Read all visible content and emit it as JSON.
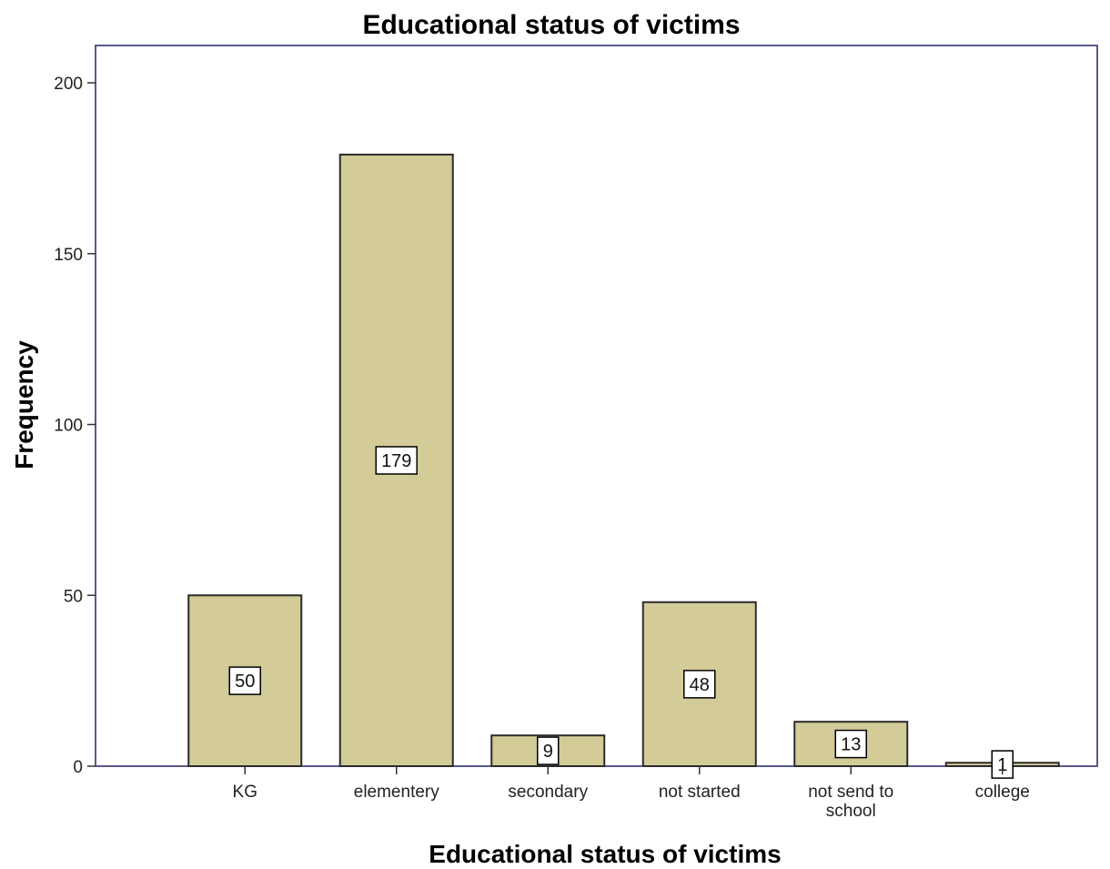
{
  "chart_data": {
    "type": "bar",
    "title": "Educational status of victims",
    "xlabel": "Educational status of victims",
    "ylabel": "Frequency",
    "categories": [
      "KG",
      "elementery",
      "secondary",
      "not started",
      "not send to school",
      "college"
    ],
    "category_label_lines": [
      [
        "KG"
      ],
      [
        "elementery"
      ],
      [
        "secondary"
      ],
      [
        "not started"
      ],
      [
        "not send to",
        "school"
      ],
      [
        "college"
      ]
    ],
    "values": [
      50,
      179,
      9,
      48,
      13,
      1
    ],
    "data_labels": [
      "50",
      "179",
      "9",
      "48",
      "13",
      "1"
    ],
    "ylim": [
      0,
      210
    ],
    "yticks": [
      0,
      50,
      100,
      150,
      200
    ],
    "ytick_labels": [
      "0",
      "50",
      "100",
      "150",
      "200"
    ],
    "grid": false,
    "legend": "none",
    "colors": {
      "bar_fill": "#d3cb98",
      "bar_stroke": "#2b2b2b",
      "plot_border": "#5a5a8c",
      "label_box_fill": "#ffffff",
      "label_box_stroke": "#000000"
    }
  }
}
